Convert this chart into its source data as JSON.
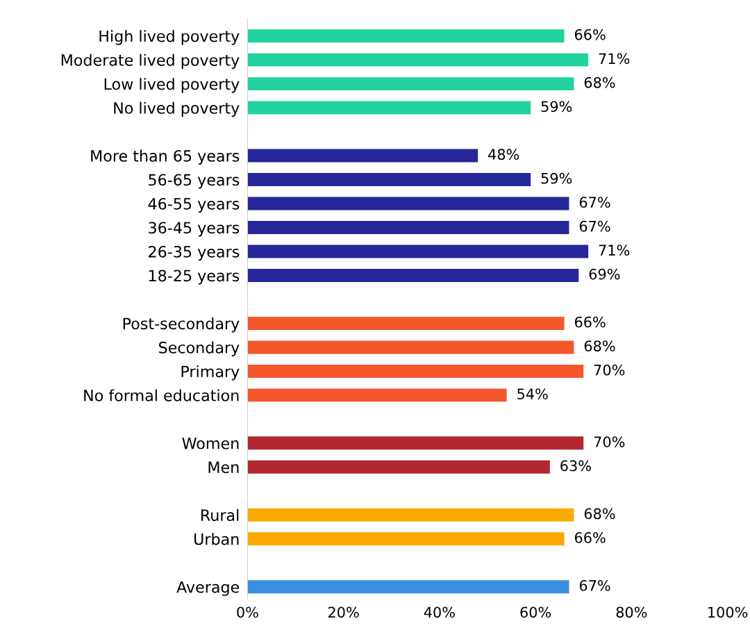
{
  "chart_data": {
    "type": "bar",
    "orientation": "horizontal",
    "categories": [
      "High lived poverty",
      "Moderate lived poverty",
      "Low lived poverty",
      "No lived poverty",
      null,
      "More than 65 years",
      "56-65 years",
      "46-55 years",
      "36-45 years",
      "26-35 years",
      "18-25 years",
      null,
      "Post-secondary",
      "Secondary",
      "Primary",
      "No formal education",
      null,
      "Women",
      "Men",
      null,
      "Rural",
      "Urban",
      null,
      "Average"
    ],
    "values": [
      66,
      71,
      68,
      59,
      null,
      48,
      59,
      67,
      67,
      71,
      69,
      null,
      66,
      68,
      70,
      54,
      null,
      70,
      63,
      null,
      68,
      66,
      null,
      67
    ],
    "colors": [
      "#22d3a0",
      "#22d3a0",
      "#22d3a0",
      "#22d3a0",
      null,
      "#27279b",
      "#27279b",
      "#27279b",
      "#27279b",
      "#27279b",
      "#27279b",
      null,
      "#f4572a",
      "#f4572a",
      "#f4572a",
      "#f4572a",
      null,
      "#b3272e",
      "#b3272e",
      null,
      "#fbaa00",
      "#fbaa00",
      null,
      "#3b8fe0"
    ],
    "value_labels": [
      "66%",
      "71%",
      "68%",
      "59%",
      null,
      "48%",
      "59%",
      "67%",
      "67%",
      "71%",
      "69%",
      null,
      "66%",
      "68%",
      "70%",
      "54%",
      null,
      "70%",
      "63%",
      null,
      "68%",
      "66%",
      null,
      "67%"
    ],
    "xlim": [
      0,
      100
    ],
    "xticks": [
      {
        "value": 0,
        "label": "0%"
      },
      {
        "value": 20,
        "label": "20%"
      },
      {
        "value": 40,
        "label": "40%"
      },
      {
        "value": 60,
        "label": "60%"
      },
      {
        "value": 80,
        "label": "80%"
      },
      {
        "value": 100,
        "label": "100%"
      }
    ],
    "grid": false,
    "legend": false
  }
}
